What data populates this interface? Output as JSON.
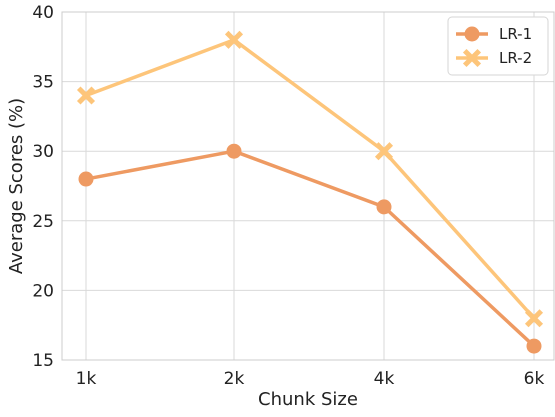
{
  "chart_data": {
    "type": "line",
    "categories": [
      "1k",
      "2k",
      "4k",
      "6k"
    ],
    "series": [
      {
        "name": "LR-1",
        "values": [
          28,
          30,
          26,
          16
        ],
        "color": "#EE9A62",
        "marker": "circle"
      },
      {
        "name": "LR-2",
        "values": [
          34,
          38,
          30,
          18
        ],
        "color": "#FDC57A",
        "marker": "x"
      }
    ],
    "title": "",
    "xlabel": "Chunk Size",
    "ylabel": "Average Scores (%)",
    "ylim": [
      15,
      40
    ],
    "yticks": [
      15,
      20,
      25,
      30,
      35,
      40
    ],
    "grid": true,
    "legend": "top-right"
  }
}
